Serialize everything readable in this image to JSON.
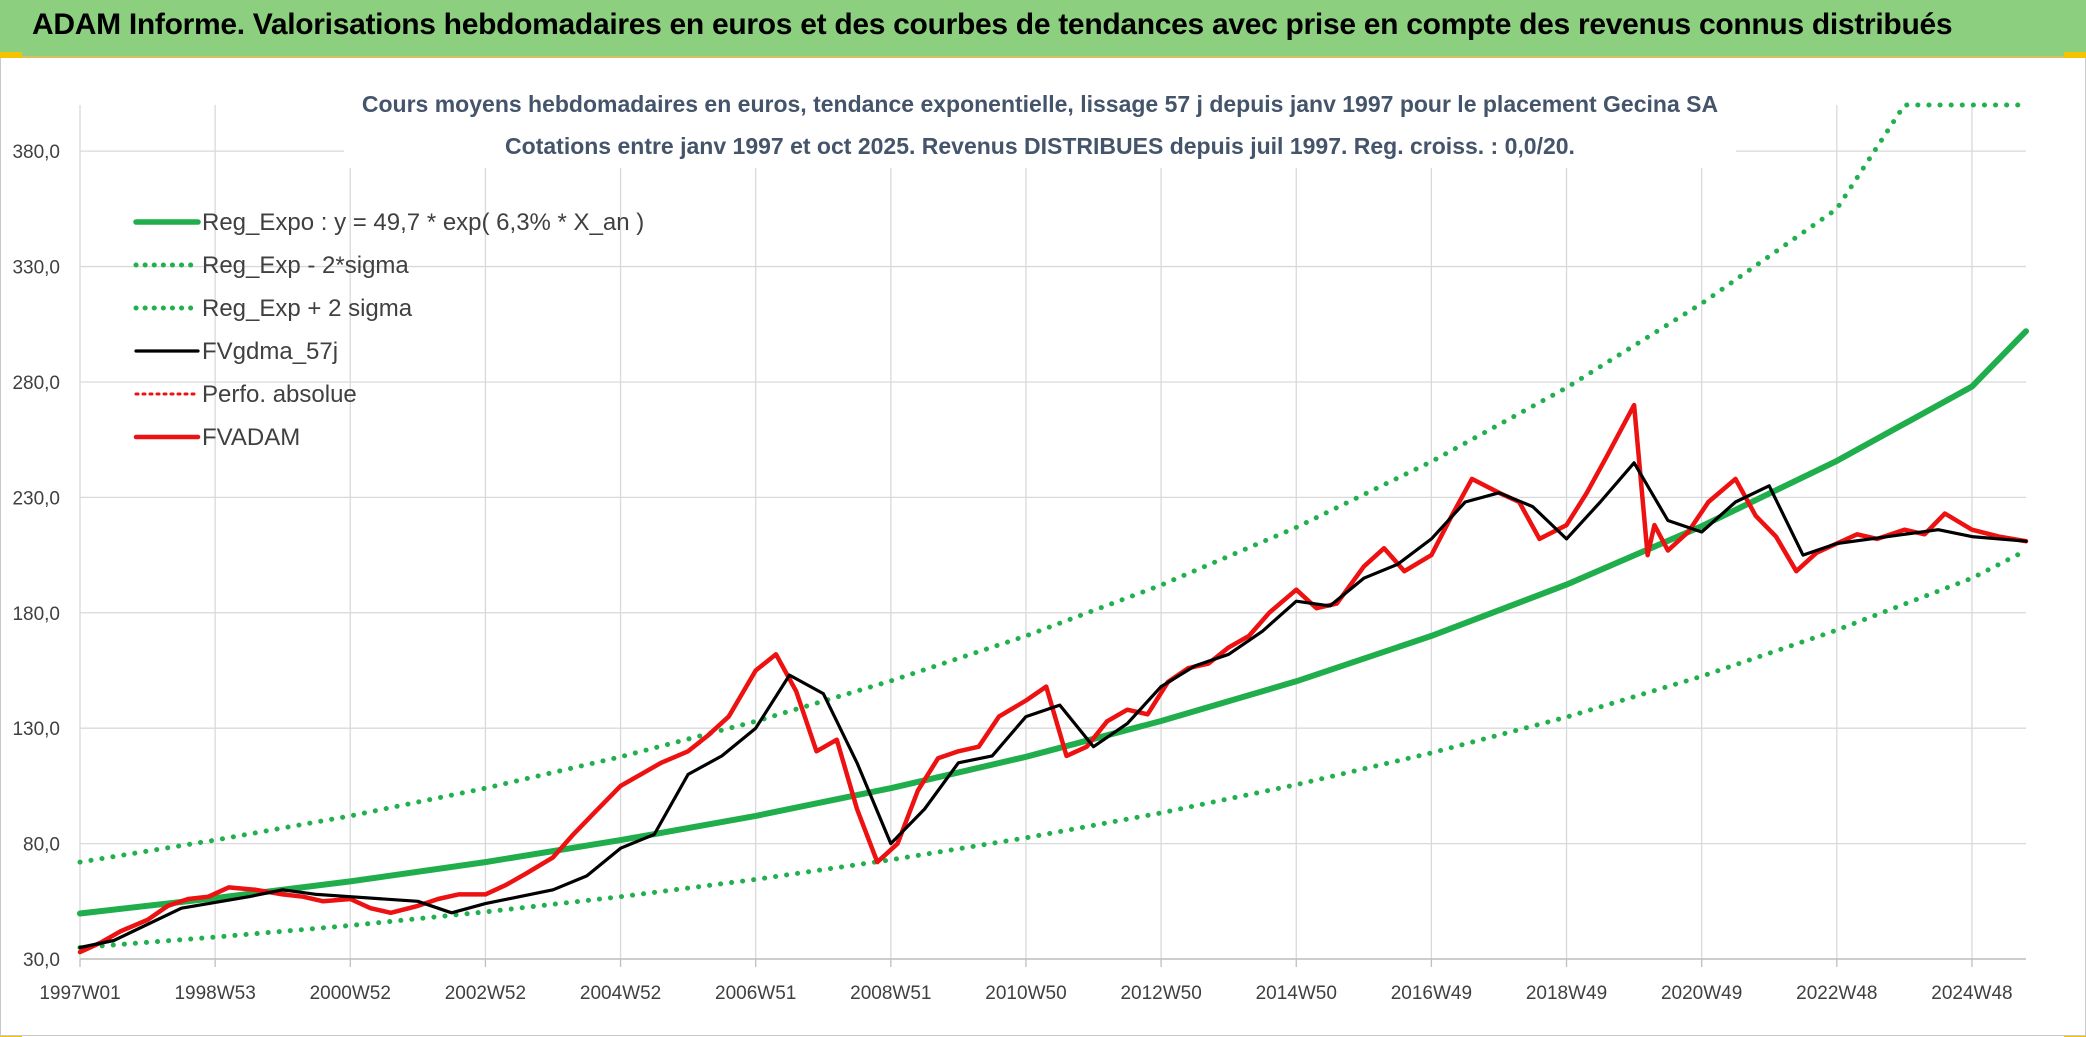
{
  "header": {
    "title": "ADAM Informe. Valorisations hebdomadaires en euros et des courbes de tendances avec prise en compte des revenus connus distribués"
  },
  "colors": {
    "header_bg": "#8ccf7e",
    "trend_green": "#1fae4b",
    "sigma_green": "#22b04e",
    "fvgdma_black": "#000000",
    "fvadam_red": "#ee1111",
    "grid": "#d9d9d9"
  },
  "chart_data": {
    "type": "line",
    "title": "Cours moyens hebdomadaires en euros, tendance exponentielle, lissage 57 j depuis janv 1997 pour le placement Gecina SA",
    "subtitle": "Cotations entre janv 1997 et oct 2025. Revenus DISTRIBUES depuis juil 1997. Reg. croiss. : 0,0/20.",
    "xlabel": "",
    "ylabel": "",
    "ylim": [
      30,
      400
    ],
    "y_ticks": [
      "30,0",
      "80,0",
      "130,0",
      "180,0",
      "230,0",
      "280,0",
      "330,0",
      "380,0"
    ],
    "x_range": [
      1997.0,
      2025.8
    ],
    "x_ticks": [
      {
        "label": "1997W01",
        "x": 1997.0
      },
      {
        "label": "1998W53",
        "x": 1999.0
      },
      {
        "label": "2000W52",
        "x": 2001.0
      },
      {
        "label": "2002W52",
        "x": 2003.0
      },
      {
        "label": "2004W52",
        "x": 2005.0
      },
      {
        "label": "2006W51",
        "x": 2007.0
      },
      {
        "label": "2008W51",
        "x": 2009.0
      },
      {
        "label": "2010W50",
        "x": 2011.0
      },
      {
        "label": "2012W50",
        "x": 2013.0
      },
      {
        "label": "2014W50",
        "x": 2015.0
      },
      {
        "label": "2016W49",
        "x": 2017.0
      },
      {
        "label": "2018W49",
        "x": 2019.0
      },
      {
        "label": "2020W49",
        "x": 2021.0
      },
      {
        "label": "2022W48",
        "x": 2023.0
      },
      {
        "label": "2024W48",
        "x": 2025.0
      }
    ],
    "grid": true,
    "legend_position": "top-left",
    "series": [
      {
        "name": "Reg_Expo : y = 49,7 * exp( 6,3% *  X_an )",
        "style": "solid",
        "color": "#1fae4b",
        "x": [
          1997.0,
          1999.0,
          2001.0,
          2003.0,
          2005.0,
          2007.0,
          2009.0,
          2011.0,
          2013.0,
          2015.0,
          2017.0,
          2019.0,
          2021.0,
          2023.0,
          2025.0,
          2025.8
        ],
        "y": [
          49.7,
          56.4,
          63.6,
          72.0,
          81.5,
          92.0,
          104.0,
          117.6,
          133.1,
          150.3,
          170.0,
          192.2,
          217.5,
          245.8,
          278.0,
          302.0
        ]
      },
      {
        "name": "Reg_Exp - 2*sigma",
        "style": "dotted",
        "color": "#22b04e",
        "x": [
          1997.0,
          1999.0,
          2001.0,
          2003.0,
          2005.0,
          2007.0,
          2009.0,
          2011.0,
          2013.0,
          2015.0,
          2017.0,
          2019.0,
          2021.0,
          2023.0,
          2025.0,
          2025.8
        ],
        "y": [
          35.0,
          39.5,
          44.5,
          50.4,
          57.0,
          64.5,
          73.0,
          82.5,
          93.3,
          105.5,
          119.3,
          134.8,
          152.5,
          172.5,
          195.0,
          207.0
        ]
      },
      {
        "name": "Reg_Exp + 2 sigma",
        "style": "dotted",
        "color": "#22b04e",
        "x": [
          1997.0,
          1999.0,
          2001.0,
          2003.0,
          2005.0,
          2007.0,
          2009.0,
          2011.0,
          2013.0,
          2015.0,
          2017.0,
          2019.0,
          2021.0,
          2023.0,
          2024.0,
          2025.8
        ],
        "y": [
          72.0,
          81.5,
          92.0,
          104.0,
          117.6,
          133.0,
          150.5,
          170.0,
          192.0,
          217.0,
          245.5,
          277.5,
          314.0,
          355.0,
          400.0,
          400.0
        ]
      },
      {
        "name": "FVgdma_57j",
        "style": "solid",
        "color": "#000000",
        "x": [
          1997.0,
          1997.5,
          1998.5,
          1999.5,
          2000.0,
          2000.5,
          2001.0,
          2002.0,
          2002.5,
          2003.0,
          2004.0,
          2004.5,
          2005.0,
          2005.5,
          2006.0,
          2006.5,
          2007.0,
          2007.5,
          2008.0,
          2008.5,
          2009.0,
          2009.5,
          2010.0,
          2010.5,
          2011.0,
          2011.5,
          2012.0,
          2012.5,
          2013.0,
          2013.5,
          2014.0,
          2014.5,
          2015.0,
          2015.5,
          2016.0,
          2016.5,
          2017.0,
          2017.5,
          2018.0,
          2018.5,
          2019.0,
          2019.5,
          2020.0,
          2020.5,
          2021.0,
          2021.5,
          2022.0,
          2022.5,
          2023.0,
          2023.5,
          2024.0,
          2024.5,
          2025.0,
          2025.8
        ],
        "y": [
          35,
          38,
          52,
          57,
          60,
          58,
          57,
          55,
          50,
          54,
          60,
          66,
          78,
          84,
          110,
          118,
          130,
          153,
          145,
          115,
          80,
          95,
          115,
          118,
          135,
          140,
          122,
          132,
          148,
          157,
          162,
          172,
          185,
          183,
          195,
          201,
          212,
          228,
          232,
          226,
          212,
          228,
          245,
          220,
          215,
          228,
          235,
          205,
          210,
          212,
          214,
          216,
          213,
          211
        ]
      },
      {
        "name": "Perfo. absolue",
        "style": "dotted",
        "color": "#ee1111",
        "x": [
          1997.0,
          1999.0,
          2001.0,
          2003.0,
          2005.0,
          2007.0,
          2009.0,
          2011.0,
          2013.0,
          2015.0,
          2017.0,
          2019.0,
          2021.0,
          2023.0,
          2025.0,
          2025.8
        ],
        "y": [
          34,
          52,
          57,
          55,
          79,
          118,
          80,
          118,
          135,
          165,
          195,
          230,
          222,
          212,
          216,
          212
        ]
      },
      {
        "name": "FVADAM",
        "style": "solid",
        "color": "#ee1111",
        "x": [
          1997.0,
          1997.3,
          1997.6,
          1998.0,
          1998.3,
          1998.6,
          1998.9,
          1999.2,
          1999.6,
          2000.0,
          2000.3,
          2000.6,
          2001.0,
          2001.3,
          2001.6,
          2002.0,
          2002.3,
          2002.6,
          2003.0,
          2003.3,
          2003.6,
          2004.0,
          2004.3,
          2004.6,
          2005.0,
          2005.3,
          2005.6,
          2006.0,
          2006.3,
          2006.6,
          2007.0,
          2007.3,
          2007.6,
          2007.9,
          2008.2,
          2008.5,
          2008.8,
          2009.1,
          2009.4,
          2009.7,
          2010.0,
          2010.3,
          2010.6,
          2011.0,
          2011.3,
          2011.6,
          2011.9,
          2012.2,
          2012.5,
          2012.8,
          2013.1,
          2013.4,
          2013.7,
          2014.0,
          2014.3,
          2014.6,
          2015.0,
          2015.3,
          2015.6,
          2016.0,
          2016.3,
          2016.6,
          2017.0,
          2017.3,
          2017.6,
          2018.0,
          2018.3,
          2018.6,
          2019.0,
          2019.3,
          2019.6,
          2020.0,
          2020.2,
          2020.3,
          2020.5,
          2020.8,
          2021.1,
          2021.5,
          2021.8,
          2022.1,
          2022.4,
          2022.7,
          2023.0,
          2023.3,
          2023.6,
          2024.0,
          2024.3,
          2024.6,
          2025.0,
          2025.4,
          2025.8
        ],
        "y": [
          33,
          37,
          42,
          47,
          53,
          56,
          57,
          61,
          60,
          58,
          57,
          55,
          56,
          52,
          50,
          53,
          56,
          58,
          58,
          62,
          67,
          74,
          84,
          93,
          105,
          110,
          115,
          120,
          127,
          135,
          155,
          162,
          146,
          120,
          125,
          95,
          72,
          80,
          103,
          117,
          120,
          122,
          135,
          142,
          148,
          118,
          122,
          133,
          138,
          136,
          150,
          156,
          158,
          165,
          170,
          180,
          190,
          182,
          184,
          200,
          208,
          198,
          205,
          222,
          238,
          232,
          228,
          212,
          218,
          232,
          248,
          270,
          205,
          218,
          207,
          215,
          228,
          238,
          222,
          213,
          198,
          206,
          210,
          214,
          212,
          216,
          214,
          223,
          216,
          213,
          211
        ]
      }
    ]
  }
}
